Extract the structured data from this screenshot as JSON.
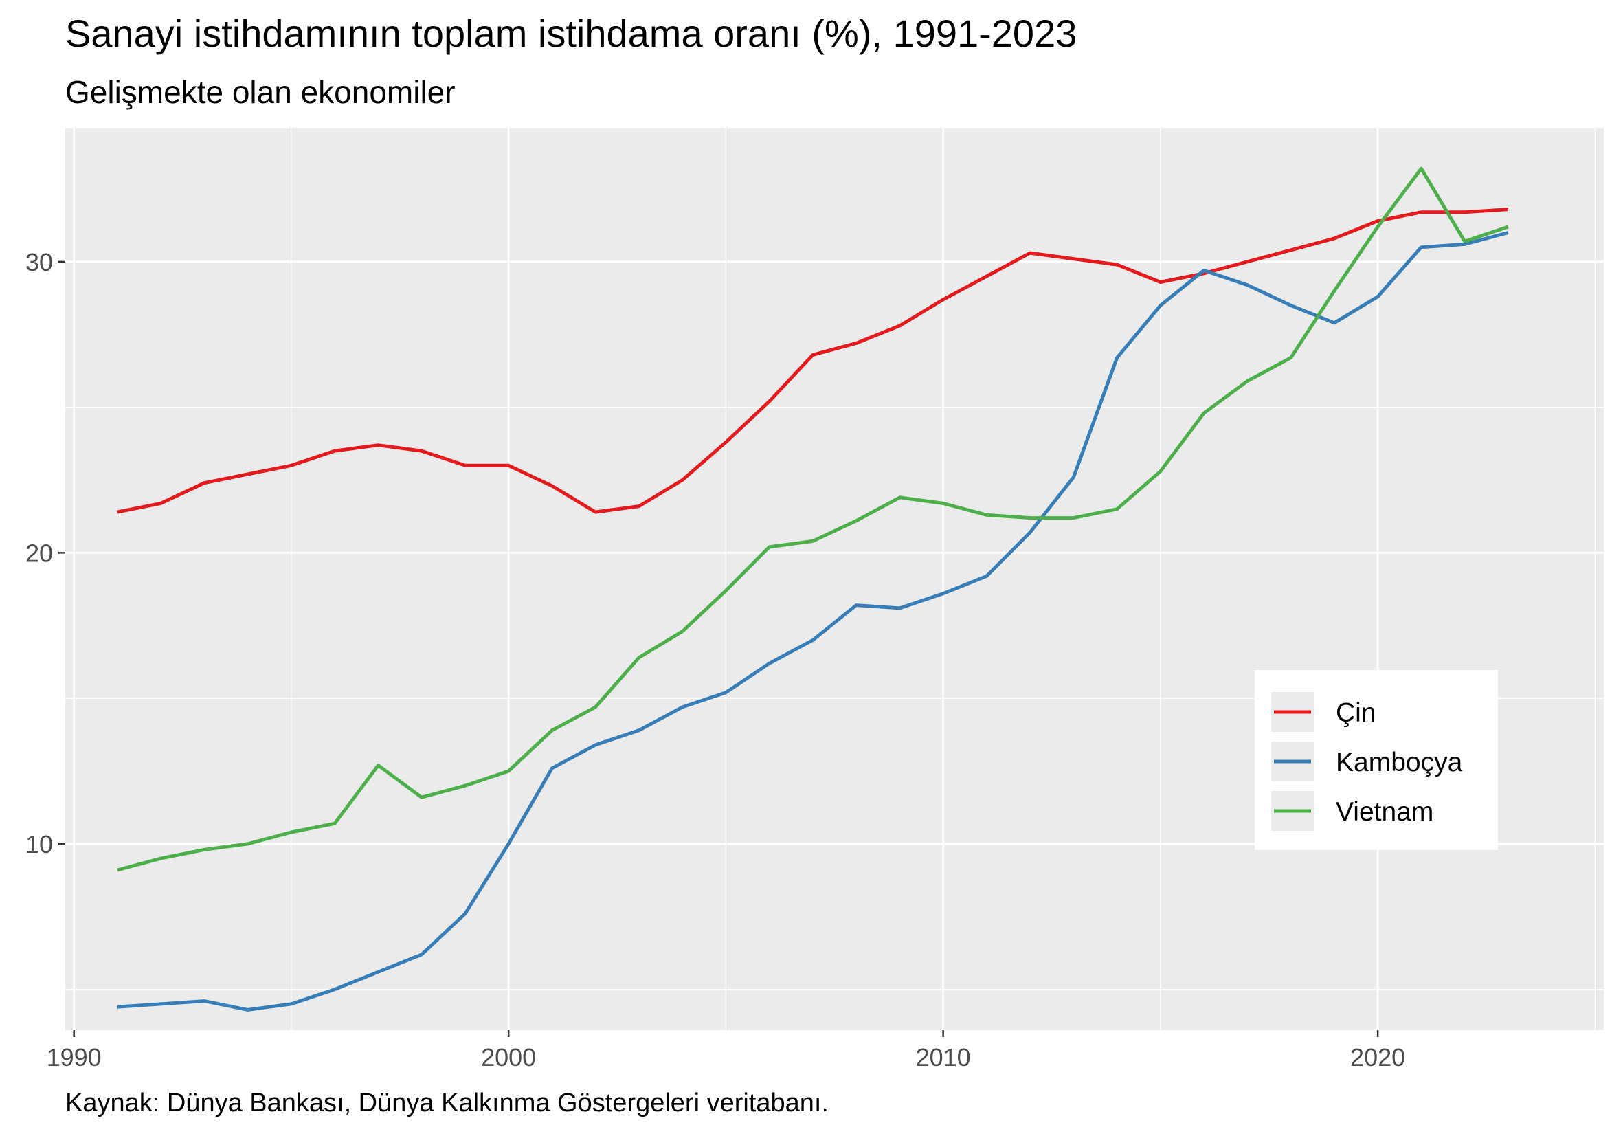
{
  "chart_data": {
    "type": "line",
    "title": "Sanayi istihdamının toplam istihdama oranı (%), 1991-2023",
    "subtitle": "Gelişmekte olan ekonomiler",
    "caption": "Kaynak: Dünya Bankası, Dünya Kalkınma Göstergeleri veritabanı.",
    "xlabel": "",
    "ylabel": "",
    "xlim": [
      1989.8,
      2025.2
    ],
    "ylim": [
      3.6,
      34.6
    ],
    "x_ticks": [
      1990,
      2000,
      2010,
      2020
    ],
    "y_ticks": [
      10,
      20,
      30
    ],
    "grid": true,
    "legend_position": "right-inside",
    "x": [
      1991,
      1992,
      1993,
      1994,
      1995,
      1996,
      1997,
      1998,
      1999,
      2000,
      2001,
      2002,
      2003,
      2004,
      2005,
      2006,
      2007,
      2008,
      2009,
      2010,
      2011,
      2012,
      2013,
      2014,
      2015,
      2016,
      2017,
      2018,
      2019,
      2020,
      2021,
      2022,
      2023
    ],
    "series": [
      {
        "name": "Çin",
        "color": "#e41a1c",
        "values": [
          21.4,
          21.7,
          22.4,
          22.7,
          23.0,
          23.5,
          23.7,
          23.5,
          23.0,
          23.0,
          22.3,
          21.4,
          21.6,
          22.5,
          23.8,
          25.2,
          26.8,
          27.2,
          27.8,
          28.7,
          29.5,
          30.3,
          30.1,
          29.9,
          29.3,
          29.6,
          30.0,
          30.4,
          30.8,
          31.4,
          31.7,
          31.7,
          31.8
        ]
      },
      {
        "name": "Kamboçya",
        "color": "#377eb8",
        "values": [
          4.4,
          4.5,
          4.6,
          4.3,
          4.5,
          5.0,
          5.6,
          6.2,
          7.6,
          10.0,
          12.6,
          13.4,
          13.9,
          14.7,
          15.2,
          16.2,
          17.0,
          18.2,
          18.1,
          18.6,
          19.2,
          20.7,
          22.6,
          26.7,
          28.5,
          29.7,
          29.2,
          28.5,
          27.9,
          28.8,
          30.5,
          30.6,
          31.0
        ]
      },
      {
        "name": "Vietnam",
        "color": "#4daf4a",
        "values": [
          9.1,
          9.5,
          9.8,
          10.0,
          10.4,
          10.7,
          12.7,
          11.6,
          12.0,
          12.5,
          13.9,
          14.7,
          16.4,
          17.3,
          18.7,
          20.2,
          20.4,
          21.1,
          21.9,
          21.7,
          21.3,
          21.2,
          21.2,
          21.5,
          22.8,
          24.8,
          25.9,
          26.7,
          29.0,
          31.2,
          33.2,
          30.7,
          31.2
        ]
      }
    ],
    "colors": {
      "panel_background": "#ebebeb",
      "grid": "#ffffff",
      "tick_text": "#4d4d4d",
      "tick_mark": "#333333"
    }
  }
}
